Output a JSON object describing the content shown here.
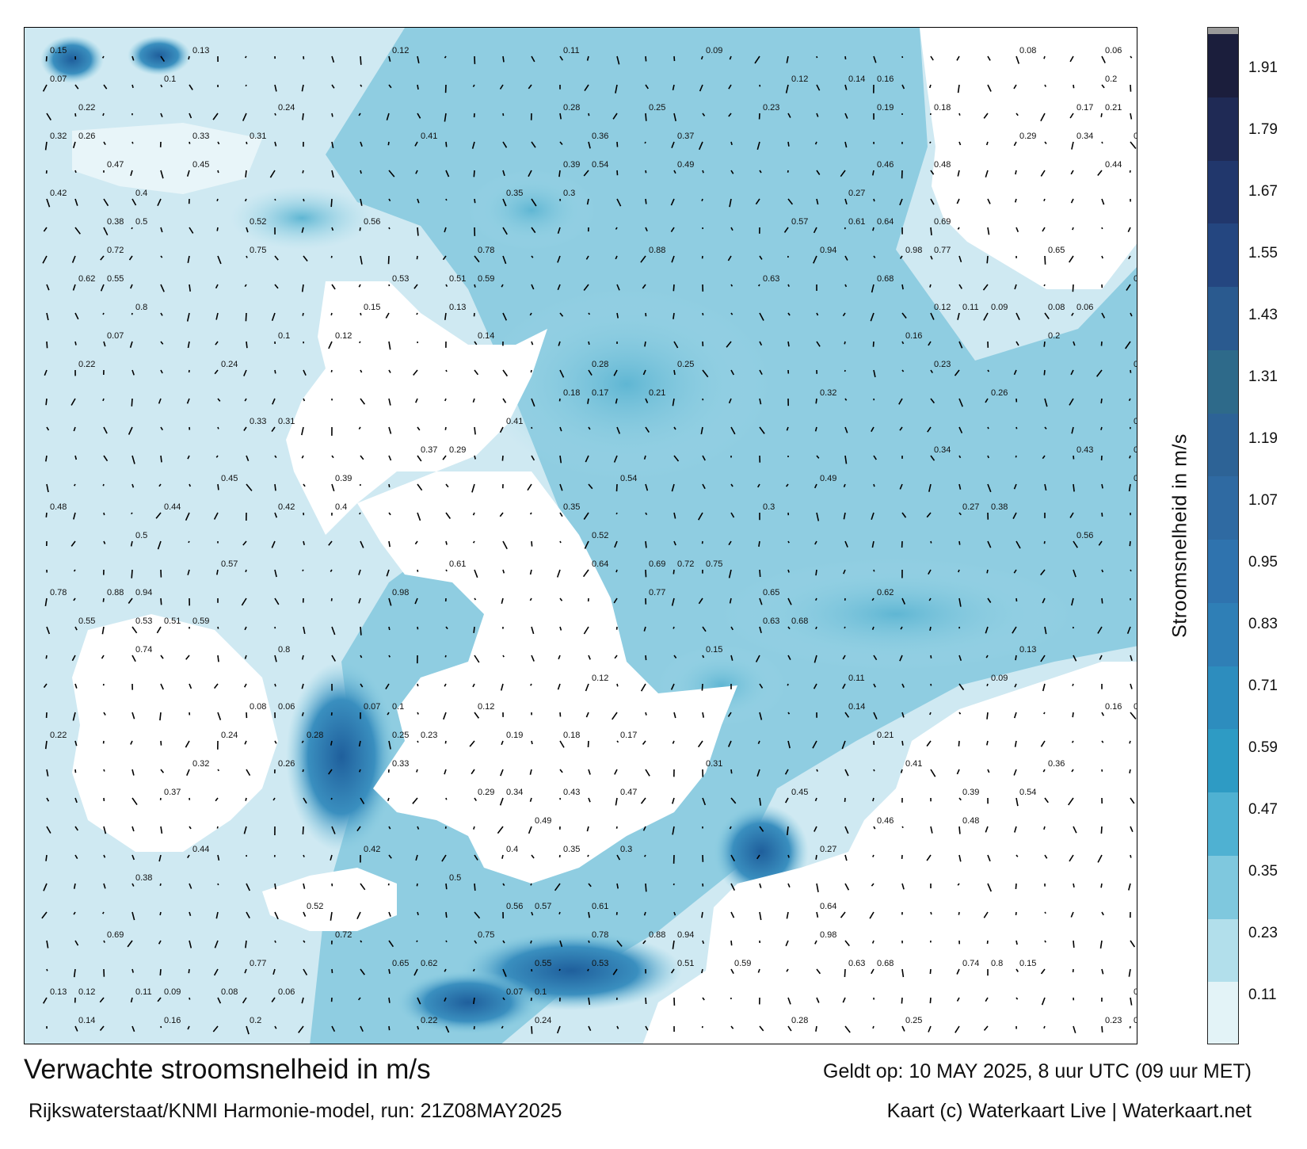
{
  "title": "Verwachte stroomsnelheid in m/s",
  "run_info": "Rijkswaterstaat/KNMI Harmonie-model, run: 21Z08MAY2025",
  "valid_time": "Geldt op: 10 MAY 2025, 8 uur UTC (09 uur MET)",
  "credit": "Kaart (c) Waterkaart Live | Waterkaart.net",
  "colorbar": {
    "label": "Stroomsnelheid in m/s",
    "ticks": [
      "1.91",
      "1.79",
      "1.67",
      "1.55",
      "1.43",
      "1.31",
      "1.19",
      "1.07",
      "0.95",
      "0.83",
      "0.71",
      "0.59",
      "0.47",
      "0.35",
      "0.23",
      "0.11"
    ],
    "colors": [
      "#1b1e3c",
      "#1f2a55",
      "#21376c",
      "#244680",
      "#2a5a8f",
      "#2e6a8a",
      "#2d6396",
      "#2f6aa2",
      "#2f73ae",
      "#2f7fb6",
      "#2d8dbe",
      "#2e9bc4",
      "#4fb1d2",
      "#7fc8de",
      "#b2dfeb",
      "#e3f3f7"
    ],
    "top_color": "#9a9a9a"
  },
  "map": {
    "water_color_light": "#d6eef5",
    "water_color_mid": "#7ec6dd",
    "water_color_dark": "#2e7fb4",
    "land_color": "#ffffff",
    "arrow_color": "#000000",
    "speed_labels": [
      "0.15",
      "0.13",
      "0.12",
      "0.11",
      "0.09",
      "0.08",
      "0.06",
      "0.07",
      "0.1",
      "0.12",
      "0.14",
      "0.16",
      "0.2",
      "0.22",
      "0.24",
      "0.28",
      "0.25",
      "0.23",
      "0.19",
      "0.18",
      "0.17",
      "0.21",
      "0.32",
      "0.26",
      "0.33",
      "0.31",
      "0.41",
      "0.36",
      "0.37",
      "0.29",
      "0.34",
      "0.43",
      "0.47",
      "0.45",
      "0.39",
      "0.54",
      "0.49",
      "0.46",
      "0.48",
      "0.44",
      "0.42",
      "0.4",
      "0.35",
      "0.3",
      "0.27",
      "0.38",
      "0.5",
      "0.52",
      "0.56",
      "0.57",
      "0.61",
      "0.64",
      "0.69",
      "0.72",
      "0.75",
      "0.78",
      "0.88",
      "0.94",
      "0.98",
      "0.77",
      "0.65",
      "0.62",
      "0.55",
      "0.53",
      "0.51",
      "0.59",
      "0.63",
      "0.68",
      "0.74",
      "0.8"
    ]
  }
}
